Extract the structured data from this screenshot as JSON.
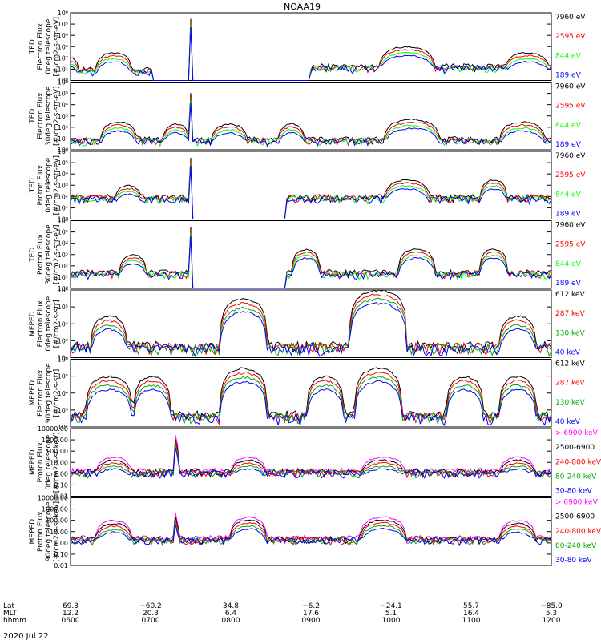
{
  "title": "NOAA19",
  "date_label": "2020 Jul 22",
  "colors": {
    "black": "#000000",
    "red": "#ff0000",
    "green": "#00ff00",
    "blue": "#0000ff",
    "magenta": "#ff00ff"
  },
  "chart_data": [
    {
      "type": "line",
      "ylabel_lines": [
        "TED",
        "Electron Flux",
        "0deg telescope",
        "[#/cm2-s-str-eV]"
      ],
      "yscale": "log",
      "ylim": [
        1,
        1000000
      ],
      "yticks": [
        "10⁰",
        "10¹",
        "10²",
        "10³",
        "10⁴",
        "10⁵",
        "10⁶"
      ],
      "legend": [
        {
          "label": "7960 eV",
          "color": "#000000"
        },
        {
          "label": "2595 eV",
          "color": "#ff0000"
        },
        {
          "label": "844 eV",
          "color": "#00ff00"
        },
        {
          "label": "189 eV",
          "color": "#0000ff"
        }
      ],
      "bumps": [
        [
          0.0,
          0.02,
          100,
          1
        ],
        [
          0.09,
          0.04,
          300,
          1
        ],
        [
          0.25,
          0.002,
          300000,
          0.6
        ],
        [
          0.7,
          0.06,
          1000,
          1
        ],
        [
          0.95,
          0.05,
          300,
          1
        ]
      ],
      "noise": [
        [
          0.0,
          0.17,
          10
        ],
        [
          0.5,
          1.0,
          20
        ]
      ]
    },
    {
      "type": "line",
      "ylabel_lines": [
        "TED",
        "Electron Flux",
        "30deg telescope",
        "[#/cm2-s-str-eV]"
      ],
      "yscale": "log",
      "ylim": [
        1,
        1000000
      ],
      "yticks": [
        "10⁰",
        "10¹",
        "10²",
        "10³",
        "10⁴",
        "10⁵",
        "10⁶"
      ],
      "legend": [
        {
          "label": "7960 eV",
          "color": "#000000"
        },
        {
          "label": "2595 eV",
          "color": "#ff0000"
        },
        {
          "label": "844 eV",
          "color": "#00ff00"
        },
        {
          "label": "189 eV",
          "color": "#0000ff"
        }
      ],
      "bumps": [
        [
          0.1,
          0.04,
          300,
          1
        ],
        [
          0.22,
          0.03,
          200,
          1
        ],
        [
          0.25,
          0.002,
          100000,
          0.6
        ],
        [
          0.33,
          0.04,
          200,
          1
        ],
        [
          0.46,
          0.03,
          200,
          1
        ],
        [
          0.71,
          0.06,
          500,
          1
        ],
        [
          0.94,
          0.05,
          300,
          1
        ]
      ],
      "noise": [
        [
          0.0,
          1.0,
          10
        ]
      ]
    },
    {
      "type": "line",
      "ylabel_lines": [
        "TED",
        "Proton Flux",
        "0deg telescope",
        "[#/cm2-s-str-eV]"
      ],
      "yscale": "log",
      "ylim": [
        1,
        1000000
      ],
      "yticks": [
        "10⁰",
        "10¹",
        "10²",
        "10³",
        "10⁴",
        "10⁵",
        "10⁶"
      ],
      "legend": [
        {
          "label": "7960 eV",
          "color": "#000000"
        },
        {
          "label": "2595 eV",
          "color": "#ff0000"
        },
        {
          "label": "844 eV",
          "color": "#00ff00"
        },
        {
          "label": "189 eV",
          "color": "#0000ff"
        }
      ],
      "bumps": [
        [
          0.12,
          0.03,
          1000,
          1
        ],
        [
          0.25,
          0.002,
          300000,
          0.6
        ],
        [
          0.7,
          0.05,
          3000,
          1
        ],
        [
          0.88,
          0.03,
          3000,
          1
        ]
      ],
      "noise": [
        [
          0.0,
          0.25,
          100
        ],
        [
          0.45,
          1.0,
          100
        ]
      ]
    },
    {
      "type": "line",
      "ylabel_lines": [
        "TED",
        "Proton Flux",
        "30deg telescope",
        "[#/cm2-s-str-eV]"
      ],
      "yscale": "log",
      "ylim": [
        1,
        1000000
      ],
      "yticks": [
        "10⁰",
        "10¹",
        "10²",
        "10³",
        "10⁴",
        "10⁵",
        "10⁶"
      ],
      "legend": [
        {
          "label": "7960 eV",
          "color": "#000000"
        },
        {
          "label": "2595 eV",
          "color": "#ff0000"
        },
        {
          "label": "844 eV",
          "color": "#00ff00"
        },
        {
          "label": "189 eV",
          "color": "#0000ff"
        }
      ],
      "bumps": [
        [
          0.13,
          0.03,
          1000,
          1
        ],
        [
          0.25,
          0.002,
          300000,
          0.6
        ],
        [
          0.49,
          0.03,
          3000,
          1
        ],
        [
          0.72,
          0.04,
          3000,
          1
        ],
        [
          0.88,
          0.03,
          3000,
          1
        ]
      ],
      "noise": [
        [
          0.0,
          0.25,
          30
        ],
        [
          0.45,
          1.0,
          30
        ]
      ]
    },
    {
      "type": "line",
      "ylabel_lines": [
        "MEPED",
        "Electron Flux",
        "0deg telescope",
        "[#/cm2-s-str]"
      ],
      "yscale": "log",
      "ylim": [
        100,
        1000000
      ],
      "yticks": [
        "10²",
        "10³",
        "10⁴",
        "10⁵",
        "10⁶"
      ],
      "legend": [
        {
          "label": "612 keV",
          "color": "#000000"
        },
        {
          "label": "287 keV",
          "color": "#ff0000"
        },
        {
          "label": "130 keV",
          "color": "#00aa00"
        },
        {
          "label": "40 keV",
          "color": "#0000ff"
        }
      ],
      "bumps": [
        [
          0.08,
          0.04,
          30000,
          1
        ],
        [
          0.36,
          0.05,
          300000,
          1
        ],
        [
          0.64,
          0.06,
          1000000,
          1
        ],
        [
          0.93,
          0.04,
          30000,
          1
        ]
      ],
      "noise": [
        [
          0.0,
          1.0,
          600
        ]
      ]
    },
    {
      "type": "line",
      "ylabel_lines": [
        "MEPED",
        "Electron Flux",
        "90deg telescope",
        "[#/cm2-s-str]"
      ],
      "yscale": "log",
      "ylim": [
        100,
        1000000
      ],
      "yticks": [
        "10²",
        "10³",
        "10⁴",
        "10⁵",
        "10⁶"
      ],
      "legend": [
        {
          "label": "612 keV",
          "color": "#000000"
        },
        {
          "label": "287 keV",
          "color": "#ff0000"
        },
        {
          "label": "130 keV",
          "color": "#00aa00"
        },
        {
          "label": "40 keV",
          "color": "#0000ff"
        }
      ],
      "bumps": [
        [
          0.08,
          0.05,
          100000,
          1
        ],
        [
          0.17,
          0.04,
          100000,
          1
        ],
        [
          0.36,
          0.05,
          300000,
          1
        ],
        [
          0.53,
          0.04,
          100000,
          1
        ],
        [
          0.64,
          0.05,
          300000,
          1
        ],
        [
          0.82,
          0.04,
          100000,
          1
        ],
        [
          0.93,
          0.04,
          100000,
          1
        ]
      ],
      "noise": [
        [
          0.0,
          1.0,
          600
        ]
      ]
    },
    {
      "type": "line",
      "ylabel_lines": [
        "MEPED",
        "Proton Flux",
        "0deg telescope",
        "[#/cm2-s-sr-keV]"
      ],
      "yscale": "log",
      "ylim": [
        0.01,
        10000
      ],
      "yticks": [
        "0.01",
        "0.10",
        "1.00",
        "10.00",
        "100.00",
        "1000.00",
        "10000.00"
      ],
      "legend": [
        {
          "label": "> 6900 keV",
          "color": "#ff00ff"
        },
        {
          "label": "2500-6900",
          "color": "#000000"
        },
        {
          "label": "240-800 keV",
          "color": "#ff0000"
        },
        {
          "label": "80-240 keV",
          "color": "#00aa00"
        },
        {
          "label": "30-80 keV",
          "color": "#0000ff"
        }
      ],
      "bumps": [
        [
          0.09,
          0.04,
          30,
          1
        ],
        [
          0.22,
          0.003,
          5000,
          0.6
        ],
        [
          0.37,
          0.04,
          30,
          1
        ],
        [
          0.65,
          0.05,
          30,
          1
        ],
        [
          0.93,
          0.04,
          30,
          1
        ]
      ],
      "noise": [
        [
          0.0,
          1.0,
          2
        ]
      ]
    },
    {
      "type": "line",
      "ylabel_lines": [
        "MEPED",
        "Proton Flux",
        "90deg telescope",
        "[#/cm2-s-sr-keV]"
      ],
      "yscale": "log",
      "ylim": [
        0.01,
        10000
      ],
      "yticks": [
        "0.01",
        "0.10",
        "1.00",
        "10.00",
        "100.00",
        "1000.00",
        "10000.00"
      ],
      "legend": [
        {
          "label": "> 6900 keV",
          "color": "#ff00ff"
        },
        {
          "label": "2500-6900",
          "color": "#000000"
        },
        {
          "label": "240-800 keV",
          "color": "#ff0000"
        },
        {
          "label": "80-240 keV",
          "color": "#00aa00"
        },
        {
          "label": "30-80 keV",
          "color": "#0000ff"
        }
      ],
      "bumps": [
        [
          0.09,
          0.04,
          100,
          1
        ],
        [
          0.22,
          0.003,
          1000,
          0.6
        ],
        [
          0.37,
          0.04,
          200,
          1
        ],
        [
          0.65,
          0.05,
          200,
          1
        ],
        [
          0.93,
          0.04,
          100,
          1
        ]
      ],
      "noise": [
        [
          0.0,
          1.0,
          3
        ]
      ]
    }
  ],
  "x_axis": {
    "row_labels": [
      "Lat",
      "MLT",
      "hhmm"
    ],
    "ticks": [
      {
        "lat": "69.3",
        "mlt": "12.2",
        "hhmm": "0600"
      },
      {
        "lat": "−60.2",
        "mlt": "20.3",
        "hhmm": "0700"
      },
      {
        "lat": "34.8",
        "mlt": "6.4",
        "hhmm": "0800"
      },
      {
        "lat": "−6.2",
        "mlt": "17.6",
        "hhmm": "0900"
      },
      {
        "lat": "−24.1",
        "mlt": "5.1",
        "hhmm": "1000"
      },
      {
        "lat": "55.7",
        "mlt": "16.4",
        "hhmm": "1100"
      },
      {
        "lat": "−85.0",
        "mlt": "5.3",
        "hhmm": "1200"
      }
    ]
  }
}
